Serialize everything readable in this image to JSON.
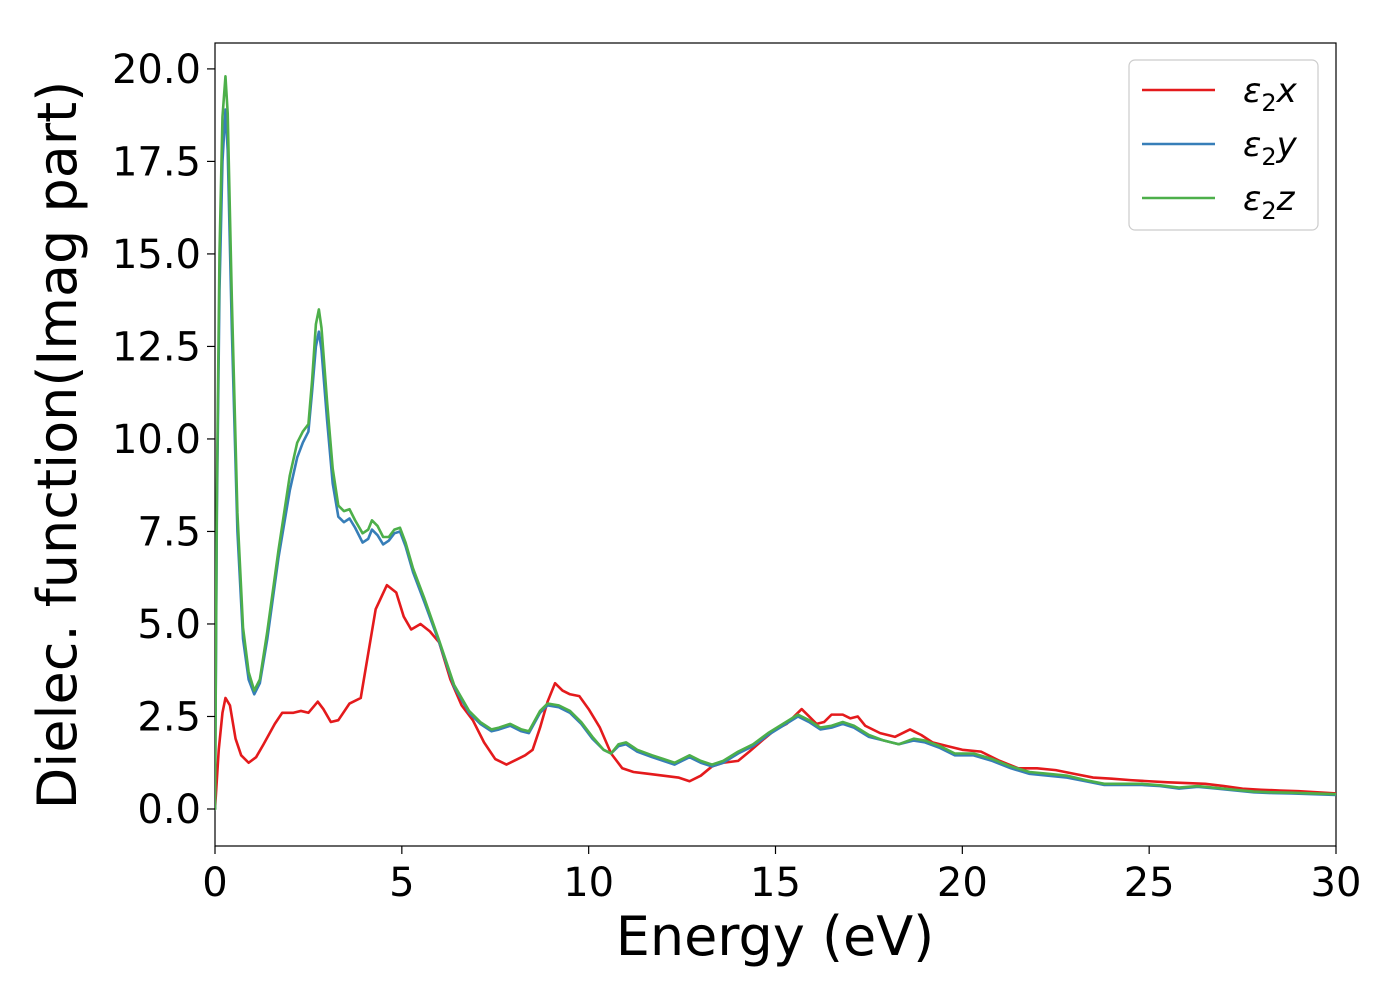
{
  "chart_data": {
    "type": "line",
    "title": "",
    "xlabel": "Energy (eV)",
    "ylabel": "Dielec. function(Imag part)",
    "xlim": [
      0,
      30
    ],
    "ylim": [
      -1.0,
      20.7
    ],
    "x_ticks": [
      "0",
      "5",
      "10",
      "15",
      "20",
      "25",
      "30"
    ],
    "y_ticks": [
      "0.0",
      "2.5",
      "5.0",
      "7.5",
      "10.0",
      "12.5",
      "15.0",
      "17.5",
      "20.0"
    ],
    "grid": false,
    "legend_position": "top-right",
    "series": [
      {
        "name": "ε₂x",
        "legend_main": "ε",
        "legend_sub": "2",
        "legend_suffix": "x",
        "color": "#e41a1c",
        "points": [
          [
            0,
            0
          ],
          [
            0.1,
            1.6
          ],
          [
            0.2,
            2.6
          ],
          [
            0.28,
            3.0
          ],
          [
            0.4,
            2.8
          ],
          [
            0.55,
            1.9
          ],
          [
            0.7,
            1.45
          ],
          [
            0.9,
            1.25
          ],
          [
            1.1,
            1.4
          ],
          [
            1.3,
            1.75
          ],
          [
            1.6,
            2.3
          ],
          [
            1.8,
            2.6
          ],
          [
            2.1,
            2.6
          ],
          [
            2.3,
            2.65
          ],
          [
            2.5,
            2.6
          ],
          [
            2.75,
            2.9
          ],
          [
            2.9,
            2.7
          ],
          [
            3.1,
            2.35
          ],
          [
            3.3,
            2.4
          ],
          [
            3.6,
            2.85
          ],
          [
            3.9,
            3.0
          ],
          [
            4.1,
            4.2
          ],
          [
            4.3,
            5.4
          ],
          [
            4.6,
            6.05
          ],
          [
            4.85,
            5.85
          ],
          [
            5.05,
            5.2
          ],
          [
            5.25,
            4.85
          ],
          [
            5.5,
            5.0
          ],
          [
            5.75,
            4.8
          ],
          [
            6.0,
            4.5
          ],
          [
            6.3,
            3.5
          ],
          [
            6.6,
            2.8
          ],
          [
            6.9,
            2.4
          ],
          [
            7.2,
            1.8
          ],
          [
            7.5,
            1.35
          ],
          [
            7.8,
            1.2
          ],
          [
            8.1,
            1.35
          ],
          [
            8.3,
            1.45
          ],
          [
            8.5,
            1.6
          ],
          [
            8.7,
            2.2
          ],
          [
            8.9,
            2.9
          ],
          [
            9.1,
            3.4
          ],
          [
            9.3,
            3.2
          ],
          [
            9.5,
            3.1
          ],
          [
            9.75,
            3.05
          ],
          [
            10.0,
            2.7
          ],
          [
            10.3,
            2.2
          ],
          [
            10.6,
            1.5
          ],
          [
            10.9,
            1.1
          ],
          [
            11.2,
            1.0
          ],
          [
            11.6,
            0.95
          ],
          [
            12.0,
            0.9
          ],
          [
            12.4,
            0.85
          ],
          [
            12.7,
            0.75
          ],
          [
            13.0,
            0.9
          ],
          [
            13.3,
            1.15
          ],
          [
            13.6,
            1.25
          ],
          [
            14.0,
            1.3
          ],
          [
            14.3,
            1.55
          ],
          [
            14.7,
            1.9
          ],
          [
            15.0,
            2.15
          ],
          [
            15.3,
            2.3
          ],
          [
            15.5,
            2.5
          ],
          [
            15.7,
            2.7
          ],
          [
            15.9,
            2.5
          ],
          [
            16.1,
            2.3
          ],
          [
            16.3,
            2.35
          ],
          [
            16.5,
            2.55
          ],
          [
            16.8,
            2.55
          ],
          [
            17.0,
            2.45
          ],
          [
            17.2,
            2.5
          ],
          [
            17.4,
            2.25
          ],
          [
            17.8,
            2.05
          ],
          [
            18.2,
            1.95
          ],
          [
            18.6,
            2.15
          ],
          [
            18.9,
            2.0
          ],
          [
            19.2,
            1.8
          ],
          [
            19.6,
            1.7
          ],
          [
            20.0,
            1.6
          ],
          [
            20.5,
            1.55
          ],
          [
            21.0,
            1.3
          ],
          [
            21.5,
            1.1
          ],
          [
            22.0,
            1.1
          ],
          [
            22.5,
            1.05
          ],
          [
            23.0,
            0.95
          ],
          [
            23.5,
            0.85
          ],
          [
            24.0,
            0.82
          ],
          [
            24.5,
            0.78
          ],
          [
            25.0,
            0.75
          ],
          [
            25.5,
            0.72
          ],
          [
            26.0,
            0.7
          ],
          [
            26.5,
            0.68
          ],
          [
            27.0,
            0.62
          ],
          [
            27.5,
            0.55
          ],
          [
            28.0,
            0.52
          ],
          [
            28.5,
            0.5
          ],
          [
            29.0,
            0.48
          ],
          [
            29.5,
            0.45
          ],
          [
            30.0,
            0.42
          ]
        ]
      },
      {
        "name": "ε₂y",
        "legend_main": "ε",
        "legend_sub": "2",
        "legend_suffix": "y",
        "color": "#377eb8",
        "points": [
          [
            0,
            0
          ],
          [
            0.05,
            8.0
          ],
          [
            0.12,
            14.0
          ],
          [
            0.2,
            17.5
          ],
          [
            0.28,
            18.9
          ],
          [
            0.34,
            17.8
          ],
          [
            0.45,
            13.0
          ],
          [
            0.6,
            7.5
          ],
          [
            0.75,
            4.6
          ],
          [
            0.9,
            3.5
          ],
          [
            1.05,
            3.1
          ],
          [
            1.2,
            3.4
          ],
          [
            1.4,
            4.6
          ],
          [
            1.7,
            6.8
          ],
          [
            2.0,
            8.6
          ],
          [
            2.2,
            9.5
          ],
          [
            2.35,
            9.9
          ],
          [
            2.5,
            10.2
          ],
          [
            2.6,
            11.3
          ],
          [
            2.7,
            12.5
          ],
          [
            2.78,
            12.9
          ],
          [
            2.85,
            12.4
          ],
          [
            3.0,
            10.5
          ],
          [
            3.15,
            8.8
          ],
          [
            3.3,
            7.9
          ],
          [
            3.45,
            7.75
          ],
          [
            3.6,
            7.85
          ],
          [
            3.75,
            7.6
          ],
          [
            3.95,
            7.2
          ],
          [
            4.1,
            7.3
          ],
          [
            4.2,
            7.55
          ],
          [
            4.35,
            7.4
          ],
          [
            4.5,
            7.15
          ],
          [
            4.65,
            7.25
          ],
          [
            4.8,
            7.45
          ],
          [
            4.95,
            7.5
          ],
          [
            5.1,
            7.1
          ],
          [
            5.3,
            6.4
          ],
          [
            5.6,
            5.6
          ],
          [
            6.0,
            4.5
          ],
          [
            6.4,
            3.3
          ],
          [
            6.8,
            2.6
          ],
          [
            7.1,
            2.3
          ],
          [
            7.4,
            2.1
          ],
          [
            7.6,
            2.15
          ],
          [
            7.9,
            2.25
          ],
          [
            8.2,
            2.1
          ],
          [
            8.4,
            2.05
          ],
          [
            8.7,
            2.6
          ],
          [
            8.9,
            2.8
          ],
          [
            9.2,
            2.75
          ],
          [
            9.5,
            2.6
          ],
          [
            9.8,
            2.3
          ],
          [
            10.1,
            1.9
          ],
          [
            10.4,
            1.6
          ],
          [
            10.6,
            1.5
          ],
          [
            10.8,
            1.7
          ],
          [
            11.0,
            1.75
          ],
          [
            11.3,
            1.55
          ],
          [
            11.7,
            1.4
          ],
          [
            12.0,
            1.3
          ],
          [
            12.3,
            1.2
          ],
          [
            12.5,
            1.3
          ],
          [
            12.7,
            1.4
          ],
          [
            13.0,
            1.25
          ],
          [
            13.3,
            1.15
          ],
          [
            13.6,
            1.25
          ],
          [
            14.0,
            1.5
          ],
          [
            14.4,
            1.7
          ],
          [
            14.8,
            2.0
          ],
          [
            15.2,
            2.25
          ],
          [
            15.6,
            2.5
          ],
          [
            15.9,
            2.35
          ],
          [
            16.2,
            2.15
          ],
          [
            16.5,
            2.2
          ],
          [
            16.8,
            2.3
          ],
          [
            17.1,
            2.2
          ],
          [
            17.5,
            1.95
          ],
          [
            17.9,
            1.85
          ],
          [
            18.3,
            1.75
          ],
          [
            18.7,
            1.85
          ],
          [
            19.0,
            1.8
          ],
          [
            19.4,
            1.65
          ],
          [
            19.8,
            1.45
          ],
          [
            20.3,
            1.45
          ],
          [
            20.8,
            1.3
          ],
          [
            21.3,
            1.1
          ],
          [
            21.8,
            0.95
          ],
          [
            22.3,
            0.9
          ],
          [
            22.8,
            0.85
          ],
          [
            23.3,
            0.75
          ],
          [
            23.8,
            0.65
          ],
          [
            24.3,
            0.65
          ],
          [
            24.8,
            0.65
          ],
          [
            25.3,
            0.62
          ],
          [
            25.8,
            0.55
          ],
          [
            26.3,
            0.6
          ],
          [
            26.8,
            0.55
          ],
          [
            27.3,
            0.5
          ],
          [
            27.8,
            0.45
          ],
          [
            28.3,
            0.43
          ],
          [
            28.8,
            0.42
          ],
          [
            29.4,
            0.4
          ],
          [
            30.0,
            0.38
          ]
        ]
      },
      {
        "name": "ε₂z",
        "legend_main": "ε",
        "legend_sub": "2",
        "legend_suffix": "z",
        "color": "#4daf4a",
        "points": [
          [
            0,
            0
          ],
          [
            0.05,
            8.5
          ],
          [
            0.12,
            15.0
          ],
          [
            0.2,
            18.7
          ],
          [
            0.28,
            19.8
          ],
          [
            0.34,
            18.8
          ],
          [
            0.45,
            13.8
          ],
          [
            0.6,
            8.0
          ],
          [
            0.75,
            4.9
          ],
          [
            0.9,
            3.7
          ],
          [
            1.05,
            3.2
          ],
          [
            1.2,
            3.5
          ],
          [
            1.4,
            4.8
          ],
          [
            1.7,
            7.0
          ],
          [
            2.0,
            9.0
          ],
          [
            2.2,
            9.9
          ],
          [
            2.35,
            10.2
          ],
          [
            2.5,
            10.4
          ],
          [
            2.6,
            11.6
          ],
          [
            2.7,
            13.1
          ],
          [
            2.78,
            13.5
          ],
          [
            2.85,
            13.0
          ],
          [
            3.0,
            11.0
          ],
          [
            3.15,
            9.2
          ],
          [
            3.3,
            8.2
          ],
          [
            3.45,
            8.05
          ],
          [
            3.6,
            8.1
          ],
          [
            3.75,
            7.8
          ],
          [
            3.95,
            7.45
          ],
          [
            4.1,
            7.55
          ],
          [
            4.2,
            7.8
          ],
          [
            4.35,
            7.65
          ],
          [
            4.5,
            7.35
          ],
          [
            4.65,
            7.35
          ],
          [
            4.8,
            7.55
          ],
          [
            4.95,
            7.6
          ],
          [
            5.1,
            7.2
          ],
          [
            5.3,
            6.5
          ],
          [
            5.6,
            5.7
          ],
          [
            6.0,
            4.55
          ],
          [
            6.4,
            3.35
          ],
          [
            6.8,
            2.65
          ],
          [
            7.1,
            2.35
          ],
          [
            7.4,
            2.15
          ],
          [
            7.6,
            2.2
          ],
          [
            7.9,
            2.3
          ],
          [
            8.2,
            2.15
          ],
          [
            8.4,
            2.1
          ],
          [
            8.7,
            2.65
          ],
          [
            8.9,
            2.85
          ],
          [
            9.2,
            2.8
          ],
          [
            9.5,
            2.65
          ],
          [
            9.8,
            2.35
          ],
          [
            10.1,
            1.95
          ],
          [
            10.4,
            1.6
          ],
          [
            10.6,
            1.5
          ],
          [
            10.8,
            1.75
          ],
          [
            11.0,
            1.8
          ],
          [
            11.3,
            1.6
          ],
          [
            11.7,
            1.45
          ],
          [
            12.0,
            1.35
          ],
          [
            12.3,
            1.25
          ],
          [
            12.5,
            1.35
          ],
          [
            12.7,
            1.45
          ],
          [
            13.0,
            1.3
          ],
          [
            13.3,
            1.2
          ],
          [
            13.6,
            1.3
          ],
          [
            14.0,
            1.55
          ],
          [
            14.4,
            1.75
          ],
          [
            14.8,
            2.05
          ],
          [
            15.2,
            2.3
          ],
          [
            15.6,
            2.55
          ],
          [
            15.9,
            2.4
          ],
          [
            16.2,
            2.2
          ],
          [
            16.5,
            2.25
          ],
          [
            16.8,
            2.35
          ],
          [
            17.1,
            2.25
          ],
          [
            17.5,
            2.0
          ],
          [
            17.9,
            1.85
          ],
          [
            18.3,
            1.75
          ],
          [
            18.7,
            1.9
          ],
          [
            19.0,
            1.85
          ],
          [
            19.4,
            1.7
          ],
          [
            19.8,
            1.5
          ],
          [
            20.3,
            1.5
          ],
          [
            20.8,
            1.35
          ],
          [
            21.3,
            1.15
          ],
          [
            21.8,
            1.0
          ],
          [
            22.3,
            0.95
          ],
          [
            22.8,
            0.9
          ],
          [
            23.3,
            0.78
          ],
          [
            23.8,
            0.68
          ],
          [
            24.3,
            0.68
          ],
          [
            24.8,
            0.68
          ],
          [
            25.3,
            0.64
          ],
          [
            25.8,
            0.58
          ],
          [
            26.3,
            0.62
          ],
          [
            26.8,
            0.57
          ],
          [
            27.3,
            0.52
          ],
          [
            27.8,
            0.47
          ],
          [
            28.3,
            0.45
          ],
          [
            28.8,
            0.44
          ],
          [
            29.4,
            0.42
          ],
          [
            30.0,
            0.4
          ]
        ]
      }
    ]
  }
}
